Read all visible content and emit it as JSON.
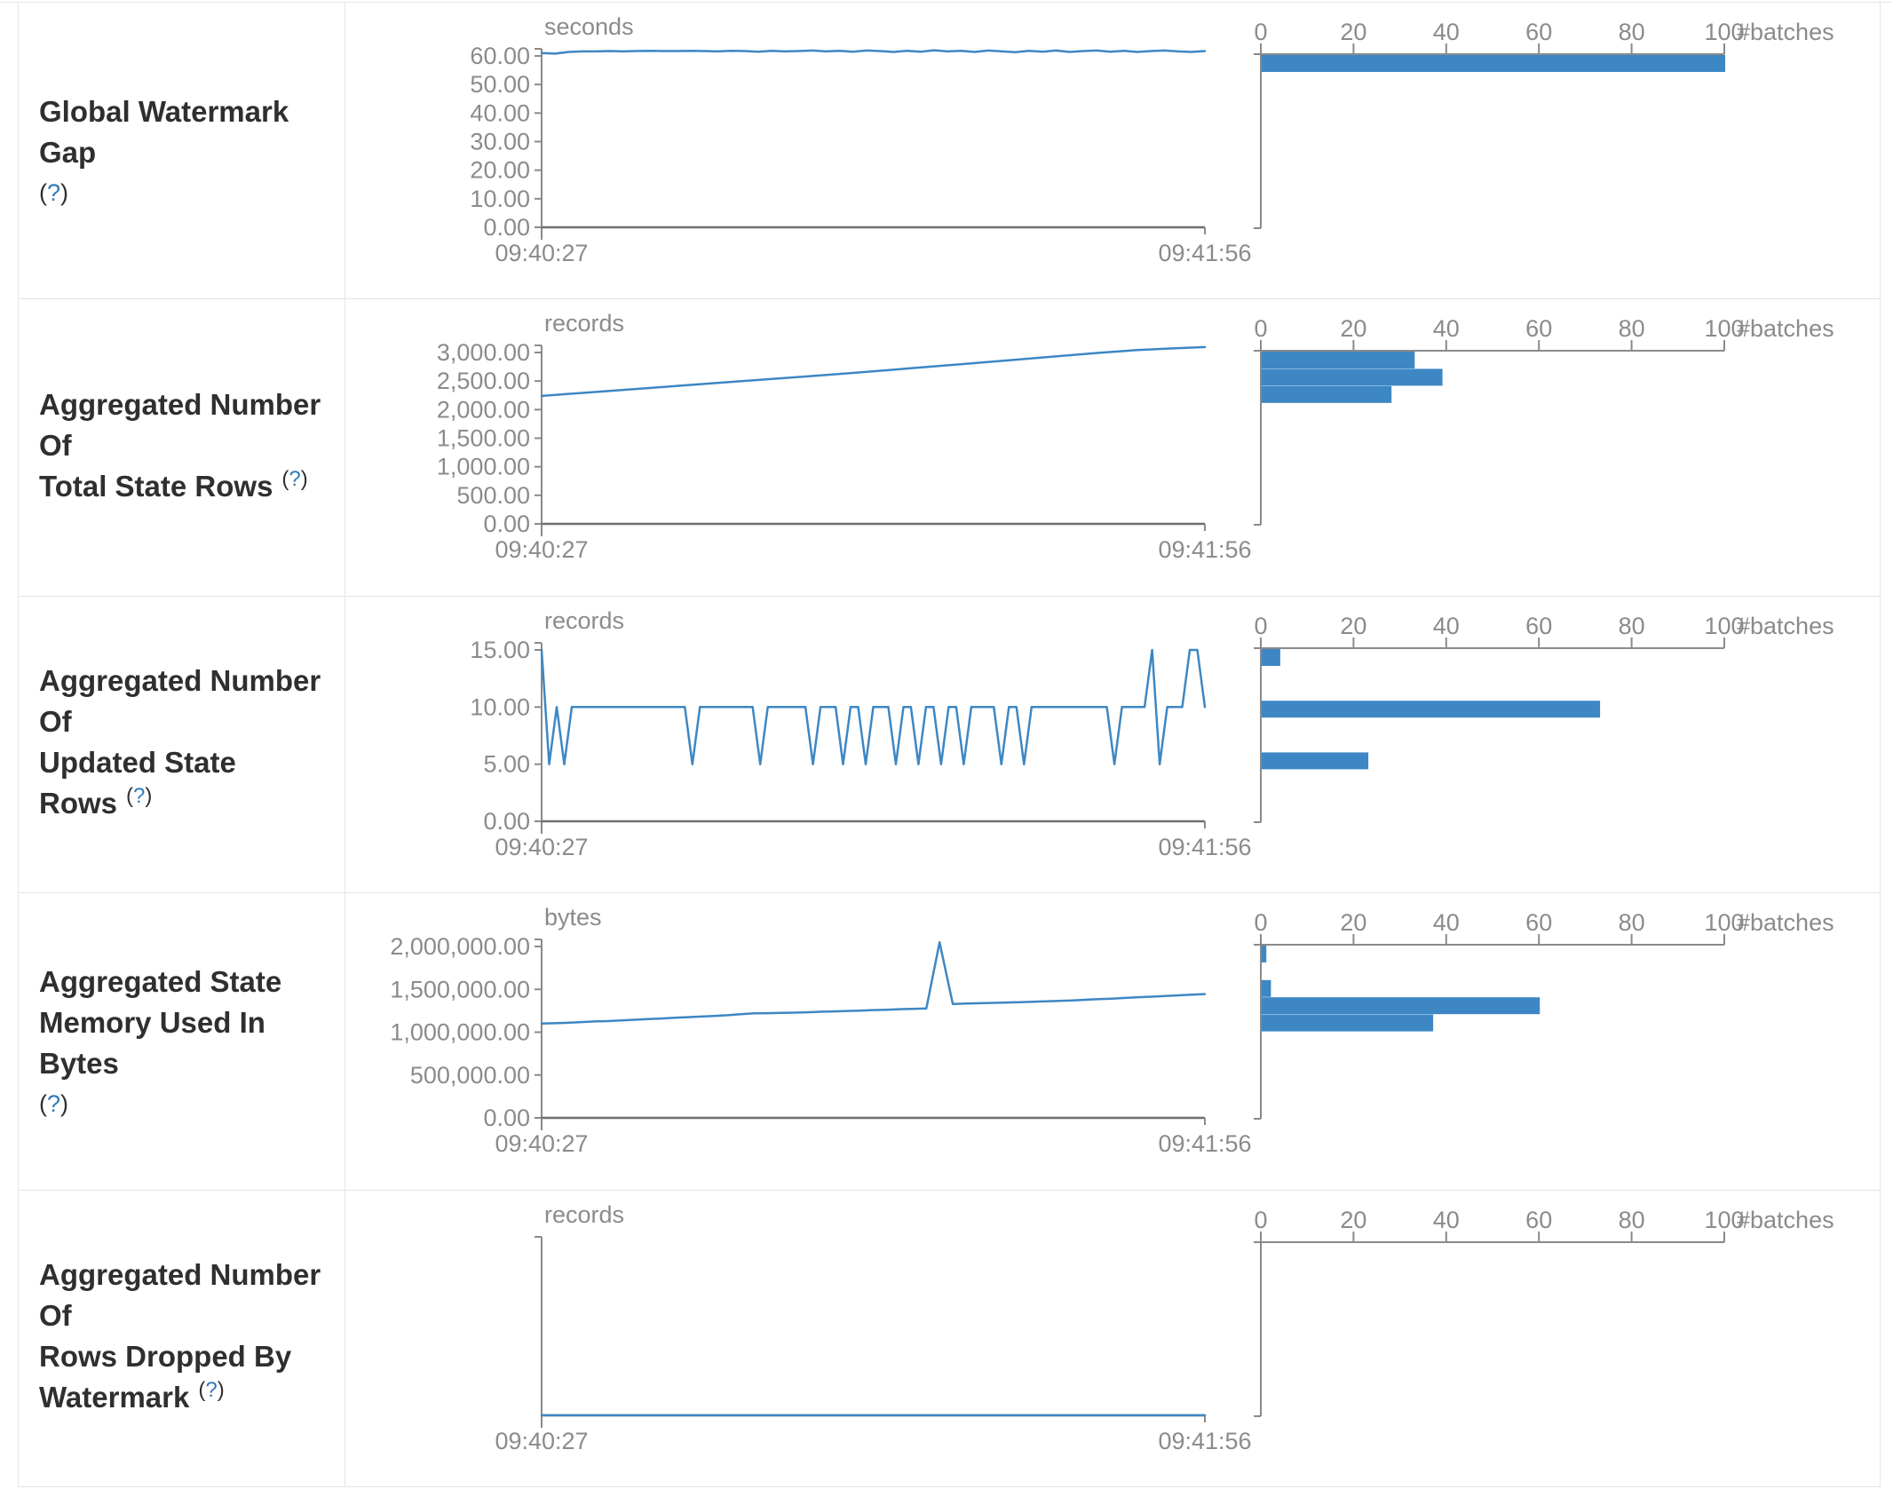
{
  "page": {
    "background": "#ffffff",
    "accent_blue": "#3d87c4",
    "help_link_blue": "#337ab7",
    "axis_gray": "#8a8a8a",
    "x_axis_dark": "#6f6f6f",
    "tick_text_gray": "#8b8b8b",
    "title_text_dark": "#2f2f2f",
    "border_color": "#e2e5e9",
    "help": {
      "open": "(",
      "q": "?",
      "close": ")"
    }
  },
  "chart_data": [
    {
      "slug": "global-watermark-gap",
      "type": "line+histogram",
      "metric": "Global Watermark Gap",
      "label_lines": [
        "Global Watermark Gap"
      ],
      "help_label": "(?)",
      "help_inline": false,
      "timeline": {
        "type": "line",
        "unit": "seconds",
        "x_start_label": "09:40:27",
        "x_end_label": "09:41:56",
        "ytick_labels": [
          "60.00",
          "50.00",
          "40.00",
          "30.00",
          "20.00",
          "10.00",
          "0.00"
        ],
        "ytick_values": [
          60,
          50,
          40,
          30,
          20,
          10,
          0
        ],
        "y_top_value": 60,
        "values": [
          61.0,
          60.8,
          61.4,
          61.6,
          61.6,
          61.7,
          61.6,
          61.7,
          61.8,
          61.7,
          61.7,
          61.8,
          61.7,
          61.6,
          61.8,
          61.7,
          61.5,
          61.8,
          61.6,
          61.7,
          61.9,
          61.6,
          61.8,
          61.5,
          61.9,
          61.7,
          61.4,
          61.8,
          61.5,
          62.0,
          61.6,
          61.8,
          61.4,
          61.9,
          61.6,
          61.3,
          61.8,
          61.5,
          61.9,
          61.4,
          61.7,
          61.9,
          61.5,
          61.8,
          61.4,
          61.7,
          61.9,
          61.6,
          61.4,
          61.7
        ]
      },
      "histogram": {
        "type": "bar",
        "unit": "#batches",
        "xtick_labels": [
          "0",
          "20",
          "40",
          "60",
          "80",
          "100"
        ],
        "xtick_values": [
          0,
          20,
          40,
          60,
          80,
          100
        ],
        "num_bins": 10,
        "bars": [
          {
            "bin": 0,
            "count": 100
          }
        ]
      }
    },
    {
      "slug": "total-state-rows",
      "type": "line+histogram",
      "metric": "Aggregated Number Of Total State Rows",
      "label_lines": [
        "Aggregated Number Of",
        "Total State Rows"
      ],
      "help_label": "(?)",
      "help_inline": true,
      "timeline": {
        "type": "line",
        "unit": "records",
        "x_start_label": "09:40:27",
        "x_end_label": "09:41:56",
        "ytick_labels": [
          "3,000.00",
          "2,500.00",
          "2,000.00",
          "1,500.00",
          "1,000.00",
          "500.00",
          "0.00"
        ],
        "ytick_values": [
          3000,
          2500,
          2000,
          1500,
          1000,
          500,
          0
        ],
        "y_top_value": 3000,
        "values": [
          2240,
          2285,
          2330,
          2375,
          2420,
          2465,
          2510,
          2555,
          2600,
          2645,
          2695,
          2745,
          2795,
          2845,
          2895,
          2945,
          2995,
          3040,
          3070,
          3095
        ]
      },
      "histogram": {
        "type": "bar",
        "unit": "#batches",
        "xtick_labels": [
          "0",
          "20",
          "40",
          "60",
          "80",
          "100"
        ],
        "xtick_values": [
          0,
          20,
          40,
          60,
          80,
          100
        ],
        "num_bins": 10,
        "bars": [
          {
            "bin": 0,
            "count": 33
          },
          {
            "bin": 1,
            "count": 39
          },
          {
            "bin": 2,
            "count": 28
          }
        ]
      }
    },
    {
      "slug": "updated-state-rows",
      "type": "line+histogram",
      "metric": "Aggregated Number Of Updated State Rows",
      "label_lines": [
        "Aggregated Number Of",
        "Updated State Rows"
      ],
      "help_label": "(?)",
      "help_inline": true,
      "timeline": {
        "type": "line",
        "unit": "records",
        "x_start_label": "09:40:27",
        "x_end_label": "09:41:56",
        "ytick_labels": [
          "15.00",
          "10.00",
          "5.00",
          "0.00"
        ],
        "ytick_values": [
          15,
          10,
          5,
          0
        ],
        "y_top_value": 15,
        "values": [
          15,
          5,
          10,
          5,
          10,
          10,
          10,
          10,
          10,
          10,
          10,
          10,
          10,
          10,
          10,
          10,
          10,
          10,
          10,
          10,
          5,
          10,
          10,
          10,
          10,
          10,
          10,
          10,
          10,
          5,
          10,
          10,
          10,
          10,
          10,
          10,
          5,
          10,
          10,
          10,
          5,
          10,
          10,
          5,
          10,
          10,
          10,
          5,
          10,
          10,
          5,
          10,
          10,
          5,
          10,
          10,
          5,
          10,
          10,
          10,
          10,
          5,
          10,
          10,
          5,
          10,
          10,
          10,
          10,
          10,
          10,
          10,
          10,
          10,
          10,
          10,
          5,
          10,
          10,
          10,
          10,
          15,
          5,
          10,
          10,
          10,
          15,
          15,
          10
        ]
      },
      "histogram": {
        "type": "bar",
        "unit": "#batches",
        "xtick_labels": [
          "0",
          "20",
          "40",
          "60",
          "80",
          "100"
        ],
        "xtick_values": [
          0,
          20,
          40,
          60,
          80,
          100
        ],
        "num_bins": 10,
        "bars": [
          {
            "bin": 0,
            "count": 4
          },
          {
            "bin": 3,
            "count": 73
          },
          {
            "bin": 6,
            "count": 23
          }
        ]
      }
    },
    {
      "slug": "state-memory-bytes",
      "type": "line+histogram",
      "metric": "Aggregated State Memory Used In Bytes",
      "label_lines": [
        "Aggregated State",
        "Memory Used In Bytes"
      ],
      "help_label": "(?)",
      "help_inline": false,
      "timeline": {
        "type": "line",
        "unit": "bytes",
        "x_start_label": "09:40:27",
        "x_end_label": "09:41:56",
        "ytick_labels": [
          "2,000,000.00",
          "1,500,000.00",
          "1,000,000.00",
          "500,000.00",
          "0.00"
        ],
        "ytick_values": [
          2000000,
          1500000,
          1000000,
          500000,
          0
        ],
        "y_top_value": 2000000,
        "values": [
          1100000,
          1105000,
          1110000,
          1118000,
          1125000,
          1130000,
          1138000,
          1145000,
          1152000,
          1160000,
          1168000,
          1175000,
          1182000,
          1190000,
          1198000,
          1210000,
          1220000,
          1222000,
          1225000,
          1228000,
          1232000,
          1238000,
          1242000,
          1248000,
          1252000,
          1258000,
          1262000,
          1268000,
          1272000,
          1278000,
          2050000,
          1330000,
          1335000,
          1338000,
          1342000,
          1346000,
          1350000,
          1355000,
          1360000,
          1365000,
          1370000,
          1378000,
          1385000,
          1392000,
          1400000,
          1408000,
          1415000,
          1422000,
          1430000,
          1438000,
          1445000
        ]
      },
      "histogram": {
        "type": "bar",
        "unit": "#batches",
        "xtick_labels": [
          "0",
          "20",
          "40",
          "60",
          "80",
          "100"
        ],
        "xtick_values": [
          0,
          20,
          40,
          60,
          80,
          100
        ],
        "num_bins": 10,
        "bars": [
          {
            "bin": 0,
            "count": 1
          },
          {
            "bin": 2,
            "count": 2
          },
          {
            "bin": 3,
            "count": 60
          },
          {
            "bin": 4,
            "count": 37
          }
        ]
      }
    },
    {
      "slug": "rows-dropped-by-watermark",
      "type": "line+histogram",
      "metric": "Aggregated Number Of Rows Dropped By Watermark",
      "label_lines": [
        "Aggregated Number Of",
        "Rows Dropped By",
        "Watermark"
      ],
      "help_label": "(?)",
      "help_inline": true,
      "timeline": {
        "type": "line",
        "unit": "records",
        "x_start_label": "09:40:27",
        "x_end_label": "09:41:56",
        "ytick_labels": [],
        "ytick_values": [],
        "y_top_value": 1,
        "values": [
          0,
          0,
          0,
          0,
          0,
          0,
          0,
          0,
          0,
          0
        ]
      },
      "histogram": {
        "type": "bar",
        "unit": "#batches",
        "xtick_labels": [
          "0",
          "20",
          "40",
          "60",
          "80",
          "100"
        ],
        "xtick_values": [
          0,
          20,
          40,
          60,
          80,
          100
        ],
        "num_bins": 10,
        "bars": []
      }
    }
  ]
}
